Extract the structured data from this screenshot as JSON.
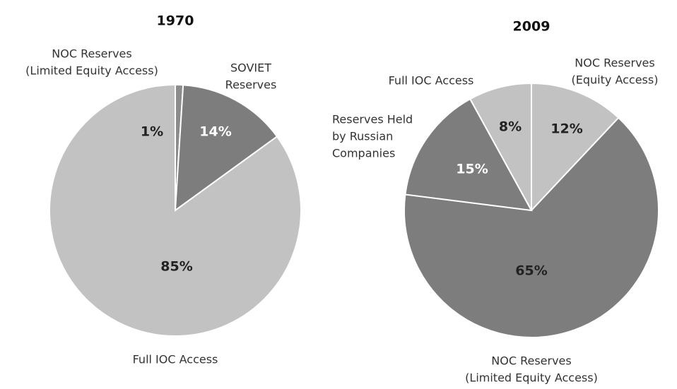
{
  "chart_data": [
    {
      "type": "pie",
      "title": "1970",
      "categories": [
        [
          "NOC Reserves",
          "(Limited Equity Access)"
        ],
        [
          "SOVIET",
          "Reserves"
        ],
        [
          "Full IOC Access"
        ]
      ],
      "values": [
        1,
        14,
        85
      ],
      "value_labels": [
        "1%",
        "14%",
        "85%"
      ],
      "colors": [
        "#8c8c8c",
        "#7d7d7d",
        "#c2c2c2"
      ],
      "label_colors": [
        "#222222",
        "#ffffff",
        "#222222"
      ]
    },
    {
      "type": "pie",
      "title": "2009",
      "categories": [
        [
          "NOC Reserves",
          "(Equity Access)"
        ],
        [
          "NOC Reserves",
          "(Limited Equity Access)"
        ],
        [
          "Reserves Held",
          "by Russian",
          "Companies"
        ],
        [
          "Full IOC Access"
        ]
      ],
      "values": [
        12,
        65,
        15,
        8
      ],
      "value_labels": [
        "12%",
        "65%",
        "15%",
        "8%"
      ],
      "colors": [
        "#c2c2c2",
        "#7d7d7d",
        "#7d7d7d",
        "#c2c2c2"
      ],
      "label_colors": [
        "#222222",
        "#222222",
        "#ffffff",
        "#222222"
      ]
    }
  ]
}
